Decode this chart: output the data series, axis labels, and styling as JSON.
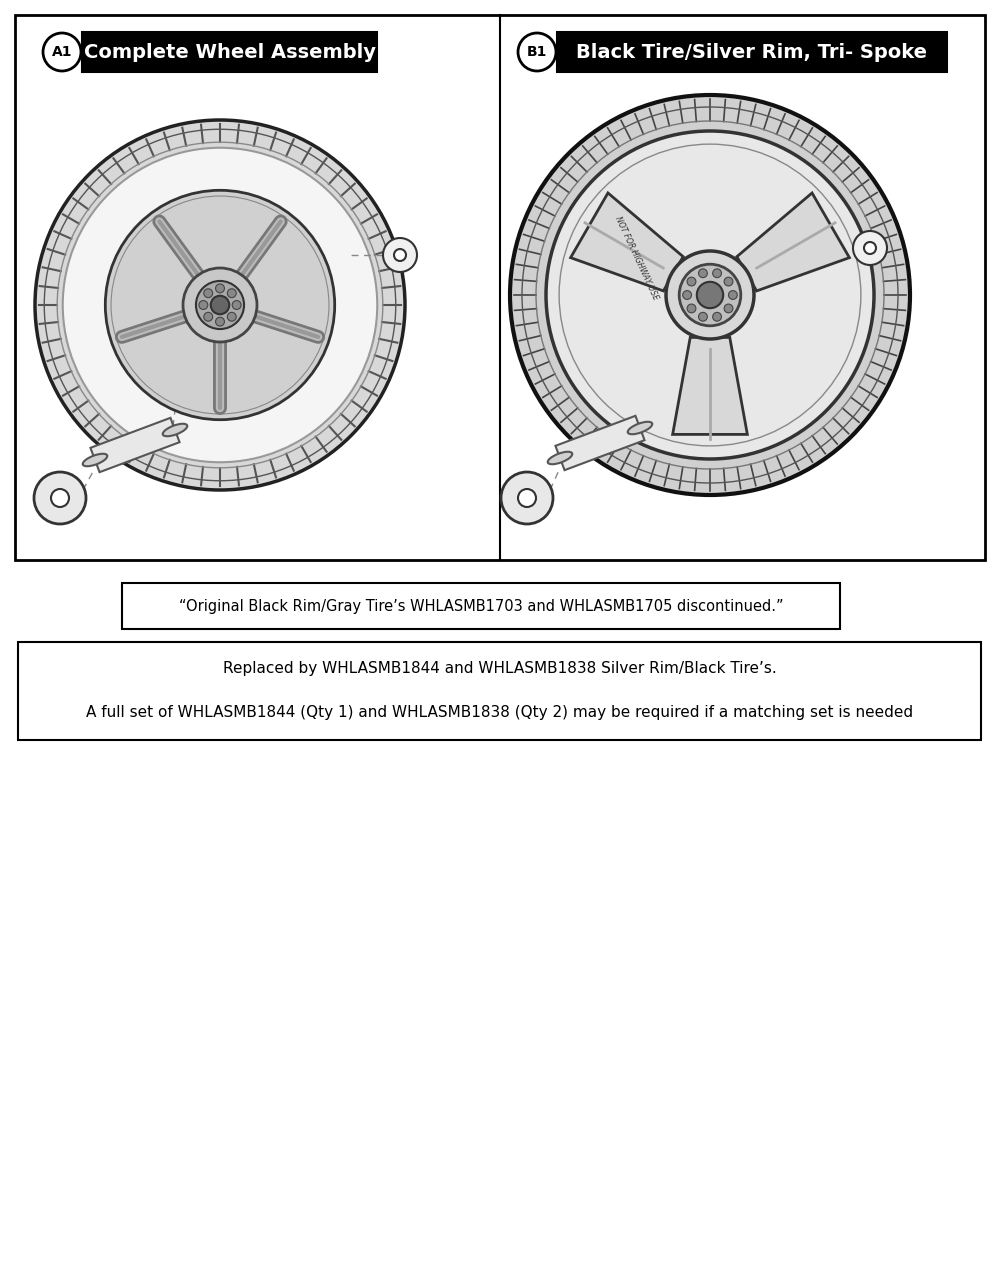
{
  "bg_color": "#ffffff",
  "fig_width": 10.0,
  "fig_height": 12.67,
  "left_panel": {
    "label_circle": "A1",
    "label_text": "Complete Wheel Assembly"
  },
  "right_panel": {
    "label_circle": "B1",
    "label_text": "Black Tire/Silver Rim, Tri- Spoke"
  },
  "note1_text": "“Original Black Rim/Gray Tire’s WHLASMB1703 and WHLASMB1705 discontinued.”",
  "note2_line1": "Replaced by WHLASMB1844 and WHLASMB1838 Silver Rim/Black Tire’s.",
  "note2_line2": "A full set of WHLASMB1844 (Qty 1) and WHLASMB1838 (Qty 2) may be required if a matching set is needed"
}
